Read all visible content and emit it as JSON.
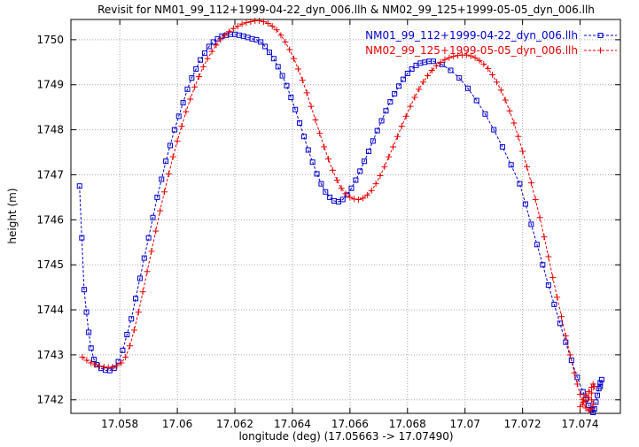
{
  "colors": {
    "blue_series": "#0000cc",
    "red_series": "#e60000",
    "grid": "#a8a8a8",
    "axis": "#000000",
    "background": "#ffffff"
  },
  "chart_data": {
    "type": "line",
    "title": "Revisit for NM01_99_112+1999-04-22_dyn_006.llh & NM02_99_125+1999-05-05_dyn_006.llh",
    "xlabel": "longitude (deg) (17.05663 -> 17.07490)",
    "ylabel": "height (m)",
    "xlim": [
      17.0563,
      17.0754
    ],
    "ylim": [
      1741.7,
      1750.45
    ],
    "grid": true,
    "legend_position": "top-right",
    "xticks": [
      17.058,
      17.06,
      17.062,
      17.064,
      17.066,
      17.068,
      17.07,
      17.072,
      17.074
    ],
    "xtick_labels": [
      "17.058",
      "17.06",
      "17.062",
      "17.064",
      "17.066",
      "17.068",
      "17.07",
      "17.072",
      "17.074"
    ],
    "yticks": [
      1742,
      1743,
      1744,
      1745,
      1746,
      1747,
      1748,
      1749,
      1750
    ],
    "ytick_labels": [
      "1742",
      "1743",
      "1744",
      "1745",
      "1746",
      "1747",
      "1748",
      "1749",
      "1750"
    ],
    "series": [
      {
        "name": "NM01_99_112+1999-04-22_dyn_006.llh",
        "color": "#0000cc",
        "marker": "square",
        "line": "dashed",
        "points": [
          [
            17.0566,
            1746.75
          ],
          [
            17.05668,
            1745.6
          ],
          [
            17.05676,
            1744.45
          ],
          [
            17.05684,
            1743.95
          ],
          [
            17.05692,
            1743.5
          ],
          [
            17.057,
            1743.15
          ],
          [
            17.0571,
            1742.9
          ],
          [
            17.0572,
            1742.78
          ],
          [
            17.05735,
            1742.7
          ],
          [
            17.0575,
            1742.66
          ],
          [
            17.05765,
            1742.65
          ],
          [
            17.0578,
            1742.7
          ],
          [
            17.05795,
            1742.85
          ],
          [
            17.0581,
            1743.1
          ],
          [
            17.05825,
            1743.45
          ],
          [
            17.0584,
            1743.8
          ],
          [
            17.05855,
            1744.25
          ],
          [
            17.0587,
            1744.7
          ],
          [
            17.05885,
            1745.15
          ],
          [
            17.059,
            1745.6
          ],
          [
            17.05915,
            1746.05
          ],
          [
            17.0593,
            1746.5
          ],
          [
            17.05945,
            1746.9
          ],
          [
            17.0596,
            1747.3
          ],
          [
            17.05975,
            1747.65
          ],
          [
            17.0599,
            1748.0
          ],
          [
            17.06005,
            1748.3
          ],
          [
            17.0602,
            1748.6
          ],
          [
            17.06035,
            1748.9
          ],
          [
            17.0605,
            1749.15
          ],
          [
            17.06065,
            1749.35
          ],
          [
            17.0608,
            1749.55
          ],
          [
            17.06095,
            1749.7
          ],
          [
            17.0611,
            1749.85
          ],
          [
            17.06125,
            1749.95
          ],
          [
            17.0614,
            1750.02
          ],
          [
            17.06155,
            1750.08
          ],
          [
            17.0617,
            1750.1
          ],
          [
            17.06185,
            1750.12
          ],
          [
            17.062,
            1750.12
          ],
          [
            17.06215,
            1750.1
          ],
          [
            17.0623,
            1750.08
          ],
          [
            17.06245,
            1750.05
          ],
          [
            17.0626,
            1750.02
          ],
          [
            17.06275,
            1750.0
          ],
          [
            17.0629,
            1749.95
          ],
          [
            17.06305,
            1749.85
          ],
          [
            17.0632,
            1749.72
          ],
          [
            17.06335,
            1749.58
          ],
          [
            17.0635,
            1749.4
          ],
          [
            17.06365,
            1749.2
          ],
          [
            17.0638,
            1748.98
          ],
          [
            17.06395,
            1748.72
          ],
          [
            17.0641,
            1748.45
          ],
          [
            17.06425,
            1748.15
          ],
          [
            17.0644,
            1747.85
          ],
          [
            17.06455,
            1747.55
          ],
          [
            17.0647,
            1747.28
          ],
          [
            17.06485,
            1747.02
          ],
          [
            17.065,
            1746.8
          ],
          [
            17.06515,
            1746.62
          ],
          [
            17.0653,
            1746.5
          ],
          [
            17.06545,
            1746.42
          ],
          [
            17.0656,
            1746.4
          ],
          [
            17.06575,
            1746.45
          ],
          [
            17.0659,
            1746.55
          ],
          [
            17.06605,
            1746.7
          ],
          [
            17.0662,
            1746.88
          ],
          [
            17.06635,
            1747.08
          ],
          [
            17.0665,
            1747.3
          ],
          [
            17.06665,
            1747.52
          ],
          [
            17.0668,
            1747.75
          ],
          [
            17.06695,
            1747.98
          ],
          [
            17.0671,
            1748.2
          ],
          [
            17.06725,
            1748.42
          ],
          [
            17.0674,
            1748.62
          ],
          [
            17.06755,
            1748.8
          ],
          [
            17.0677,
            1748.97
          ],
          [
            17.06785,
            1749.12
          ],
          [
            17.068,
            1749.25
          ],
          [
            17.06815,
            1749.35
          ],
          [
            17.0683,
            1749.43
          ],
          [
            17.06845,
            1749.48
          ],
          [
            17.0686,
            1749.5
          ],
          [
            17.06875,
            1749.52
          ],
          [
            17.0689,
            1749.52
          ],
          [
            17.0692,
            1749.45
          ],
          [
            17.0695,
            1749.32
          ],
          [
            17.0698,
            1749.15
          ],
          [
            17.0701,
            1748.92
          ],
          [
            17.0704,
            1748.65
          ],
          [
            17.0707,
            1748.35
          ],
          [
            17.071,
            1748.0
          ],
          [
            17.0713,
            1747.62
          ],
          [
            17.0716,
            1747.22
          ],
          [
            17.0719,
            1746.8
          ],
          [
            17.0721,
            1746.35
          ],
          [
            17.0723,
            1745.9
          ],
          [
            17.0725,
            1745.45
          ],
          [
            17.0727,
            1745.0
          ],
          [
            17.0729,
            1744.55
          ],
          [
            17.0731,
            1744.12
          ],
          [
            17.0733,
            1743.7
          ],
          [
            17.0735,
            1743.28
          ],
          [
            17.0737,
            1742.88
          ],
          [
            17.0739,
            1742.5
          ],
          [
            17.0741,
            1742.18
          ],
          [
            17.0742,
            1742.02
          ],
          [
            17.0743,
            1741.88
          ],
          [
            17.0744,
            1741.78
          ],
          [
            17.07445,
            1741.72
          ],
          [
            17.0745,
            1741.8
          ],
          [
            17.07455,
            1741.95
          ],
          [
            17.0746,
            1742.1
          ],
          [
            17.07465,
            1742.25
          ],
          [
            17.0747,
            1742.38
          ],
          [
            17.07475,
            1742.45
          ],
          [
            17.0747,
            1742.3
          ]
        ]
      },
      {
        "name": "NM02_99_125+1999-05-05_dyn_006.llh",
        "color": "#e60000",
        "marker": "plus",
        "line": "dashed",
        "points": [
          [
            17.0567,
            1742.95
          ],
          [
            17.05685,
            1742.88
          ],
          [
            17.057,
            1742.82
          ],
          [
            17.05715,
            1742.78
          ],
          [
            17.0573,
            1742.75
          ],
          [
            17.05745,
            1742.73
          ],
          [
            17.0576,
            1742.72
          ],
          [
            17.05775,
            1742.73
          ],
          [
            17.0579,
            1742.76
          ],
          [
            17.05805,
            1742.82
          ],
          [
            17.0582,
            1742.95
          ],
          [
            17.05835,
            1743.2
          ],
          [
            17.0585,
            1743.55
          ],
          [
            17.05865,
            1743.95
          ],
          [
            17.0588,
            1744.4
          ],
          [
            17.05895,
            1744.85
          ],
          [
            17.0591,
            1745.3
          ],
          [
            17.05925,
            1745.75
          ],
          [
            17.0594,
            1746.2
          ],
          [
            17.05955,
            1746.62
          ],
          [
            17.0597,
            1747.02
          ],
          [
            17.05985,
            1747.4
          ],
          [
            17.06,
            1747.75
          ],
          [
            17.06015,
            1748.08
          ],
          [
            17.0603,
            1748.4
          ],
          [
            17.06045,
            1748.68
          ],
          [
            17.0606,
            1748.95
          ],
          [
            17.06075,
            1749.18
          ],
          [
            17.0609,
            1749.4
          ],
          [
            17.06105,
            1749.58
          ],
          [
            17.0612,
            1749.74
          ],
          [
            17.06135,
            1749.88
          ],
          [
            17.0615,
            1750.0
          ],
          [
            17.06165,
            1750.1
          ],
          [
            17.0618,
            1750.18
          ],
          [
            17.06195,
            1750.25
          ],
          [
            17.0621,
            1750.3
          ],
          [
            17.06225,
            1750.35
          ],
          [
            17.0624,
            1750.38
          ],
          [
            17.06255,
            1750.4
          ],
          [
            17.0627,
            1750.42
          ],
          [
            17.06285,
            1750.42
          ],
          [
            17.063,
            1750.4
          ],
          [
            17.06315,
            1750.36
          ],
          [
            17.0633,
            1750.3
          ],
          [
            17.06345,
            1750.22
          ],
          [
            17.0636,
            1750.1
          ],
          [
            17.06375,
            1749.95
          ],
          [
            17.0639,
            1749.78
          ],
          [
            17.06405,
            1749.58
          ],
          [
            17.0642,
            1749.35
          ],
          [
            17.06435,
            1749.1
          ],
          [
            17.0645,
            1748.82
          ],
          [
            17.06465,
            1748.52
          ],
          [
            17.0648,
            1748.22
          ],
          [
            17.06495,
            1747.92
          ],
          [
            17.0651,
            1747.62
          ],
          [
            17.06525,
            1747.35
          ],
          [
            17.0654,
            1747.1
          ],
          [
            17.06555,
            1746.88
          ],
          [
            17.0657,
            1746.7
          ],
          [
            17.06585,
            1746.58
          ],
          [
            17.066,
            1746.5
          ],
          [
            17.06615,
            1746.46
          ],
          [
            17.0663,
            1746.45
          ],
          [
            17.06645,
            1746.48
          ],
          [
            17.0666,
            1746.55
          ],
          [
            17.06675,
            1746.65
          ],
          [
            17.0669,
            1746.8
          ],
          [
            17.06705,
            1746.98
          ],
          [
            17.0672,
            1747.18
          ],
          [
            17.06735,
            1747.4
          ],
          [
            17.0675,
            1747.62
          ],
          [
            17.06765,
            1747.85
          ],
          [
            17.0678,
            1748.08
          ],
          [
            17.06795,
            1748.3
          ],
          [
            17.0681,
            1748.52
          ],
          [
            17.06825,
            1748.72
          ],
          [
            17.0684,
            1748.9
          ],
          [
            17.06855,
            1749.06
          ],
          [
            17.0687,
            1749.2
          ],
          [
            17.06885,
            1749.32
          ],
          [
            17.069,
            1749.42
          ],
          [
            17.06915,
            1749.5
          ],
          [
            17.0693,
            1749.56
          ],
          [
            17.06945,
            1749.6
          ],
          [
            17.0696,
            1749.63
          ],
          [
            17.06975,
            1749.65
          ],
          [
            17.0699,
            1749.66
          ],
          [
            17.07005,
            1749.66
          ],
          [
            17.0702,
            1749.64
          ],
          [
            17.07035,
            1749.6
          ],
          [
            17.0705,
            1749.54
          ],
          [
            17.07065,
            1749.46
          ],
          [
            17.0708,
            1749.36
          ],
          [
            17.07095,
            1749.22
          ],
          [
            17.0711,
            1749.06
          ],
          [
            17.07125,
            1748.88
          ],
          [
            17.0714,
            1748.66
          ],
          [
            17.07155,
            1748.42
          ],
          [
            17.0717,
            1748.15
          ],
          [
            17.07185,
            1747.85
          ],
          [
            17.072,
            1747.52
          ],
          [
            17.07215,
            1747.18
          ],
          [
            17.0723,
            1746.82
          ],
          [
            17.07245,
            1746.45
          ],
          [
            17.0726,
            1746.05
          ],
          [
            17.07275,
            1745.62
          ],
          [
            17.0729,
            1745.18
          ],
          [
            17.07305,
            1744.72
          ],
          [
            17.0732,
            1744.28
          ],
          [
            17.07335,
            1743.85
          ],
          [
            17.0735,
            1743.42
          ],
          [
            17.07365,
            1743.0
          ],
          [
            17.0738,
            1742.6
          ],
          [
            17.0739,
            1742.35
          ],
          [
            17.074,
            1742.12
          ],
          [
            17.0741,
            1741.95
          ],
          [
            17.0742,
            1741.82
          ],
          [
            17.0743,
            1741.76
          ],
          [
            17.0744,
            1741.8
          ],
          [
            17.07445,
            1741.9
          ],
          [
            17.0744,
            1742.0
          ],
          [
            17.0743,
            1742.05
          ],
          [
            17.0742,
            1741.98
          ],
          [
            17.0741,
            1741.9
          ],
          [
            17.074,
            1741.85
          ],
          [
            17.0741,
            1742.0
          ],
          [
            17.0742,
            1742.1
          ],
          [
            17.0743,
            1742.18
          ],
          [
            17.0744,
            1742.28
          ],
          [
            17.07445,
            1742.35
          ],
          [
            17.0745,
            1742.3
          ],
          [
            17.0744,
            1742.15
          ]
        ]
      }
    ]
  }
}
